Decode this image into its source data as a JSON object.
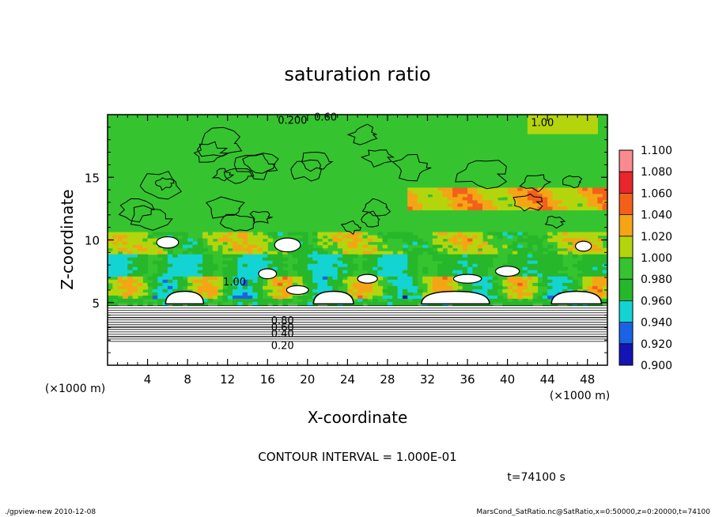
{
  "chart_data": {
    "type": "heatmap",
    "title": "saturation ratio",
    "xlabel": "X-coordinate",
    "ylabel": "Z-coordinate",
    "x_unit": "(×1000 m)",
    "y_unit": "(×1000 m)",
    "xlim": [
      0,
      50
    ],
    "ylim": [
      0,
      20
    ],
    "x_ticks": [
      "4",
      "8",
      "12",
      "16",
      "20",
      "24",
      "28",
      "32",
      "36",
      "40",
      "44",
      "48"
    ],
    "y_ticks": [
      "5",
      "10",
      "15"
    ],
    "colorbar": {
      "levels": [
        "1.100",
        "1.080",
        "1.060",
        "1.040",
        "1.020",
        "1.000",
        "0.980",
        "0.960",
        "0.940",
        "0.920",
        "0.900"
      ],
      "colors": [
        "#f98a8f",
        "#e8262b",
        "#f2611a",
        "#f4a516",
        "#b4d50d",
        "#35c42f",
        "#26b72a",
        "#14d3d3",
        "#1a63e6",
        "#1414b4",
        "#7a1ea8"
      ]
    },
    "contour_labels": [
      "0.20",
      "0.40",
      "0.60",
      "0.80",
      "1.00",
      "0.60",
      "0.200",
      "1.00"
    ],
    "contour_interval": "CONTOUR INTERVAL = 1.000E-01",
    "time_label": "t=74100 s"
  },
  "footer": {
    "left": "./gpview-new   2010-12-08",
    "right": "MarsCond_SatRatio.nc@SatRatio,x=0:50000,z=0:20000,t=74100"
  }
}
